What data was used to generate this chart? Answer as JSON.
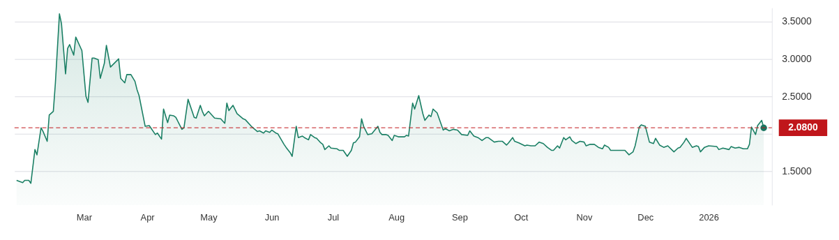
{
  "chart_data": {
    "type": "area",
    "xlim": [
      "2025-01-26",
      "2026-02-01"
    ],
    "xticks": [
      {
        "value": "2025-03-01",
        "label": "Mar"
      },
      {
        "value": "2025-04-01",
        "label": "Apr"
      },
      {
        "value": "2025-05-01",
        "label": "May"
      },
      {
        "value": "2025-06-01",
        "label": "Jun"
      },
      {
        "value": "2025-07-01",
        "label": "Jul"
      },
      {
        "value": "2025-08-01",
        "label": "Aug"
      },
      {
        "value": "2025-09-01",
        "label": "Sep"
      },
      {
        "value": "2025-10-01",
        "label": "Oct"
      },
      {
        "value": "2025-11-01",
        "label": "Nov"
      },
      {
        "value": "2025-12-01",
        "label": "Dec"
      },
      {
        "value": "2026-01-01",
        "label": "2026"
      }
    ],
    "ylim": [
      1.05,
      3.68
    ],
    "yticks": [
      {
        "value": 1.5,
        "label": "1.5000"
      },
      {
        "value": 2.0,
        "label": null
      },
      {
        "value": 2.5,
        "label": "2.5000"
      },
      {
        "value": 3.0,
        "label": "3.0000"
      },
      {
        "value": 3.5,
        "label": "3.5000"
      }
    ],
    "grid": "y",
    "ref_lines": [
      {
        "axis": "y",
        "value": 2.08,
        "label": "2.0800",
        "color": "#c0161b",
        "line_style": "dashed"
      }
    ],
    "series": [
      {
        "color": "#1a7f64",
        "x": [
          "2025-01-27",
          "2025-01-30",
          "2025-01-31",
          "2025-02-02",
          "2025-02-03",
          "2025-02-05",
          "2025-02-06",
          "2025-02-08",
          "2025-02-09",
          "2025-02-11",
          "2025-02-12",
          "2025-02-14",
          "2025-02-15",
          "2025-02-17",
          "2025-02-18",
          "2025-02-20",
          "2025-02-21",
          "2025-02-22",
          "2025-02-24",
          "2025-02-25",
          "2025-02-28",
          "2025-03-02",
          "2025-03-03",
          "2025-03-05",
          "2025-03-06",
          "2025-03-08",
          "2025-03-09",
          "2025-03-11",
          "2025-03-12",
          "2025-03-14",
          "2025-03-18",
          "2025-03-19",
          "2025-03-21",
          "2025-03-22",
          "2025-03-24",
          "2025-03-26",
          "2025-03-27",
          "2025-03-28",
          "2025-03-31",
          "2025-04-02",
          "2025-04-05",
          "2025-04-06",
          "2025-04-08",
          "2025-04-09",
          "2025-04-11",
          "2025-04-12",
          "2025-04-14",
          "2025-04-15",
          "2025-04-18",
          "2025-04-19",
          "2025-04-21",
          "2025-04-23",
          "2025-04-24",
          "2025-04-25",
          "2025-04-27",
          "2025-04-28",
          "2025-04-29",
          "2025-05-01",
          "2025-05-04",
          "2025-05-07",
          "2025-05-09",
          "2025-05-10",
          "2025-05-11",
          "2025-05-13",
          "2025-05-15",
          "2025-05-18",
          "2025-05-19",
          "2025-05-22",
          "2025-05-25",
          "2025-05-26",
          "2025-05-28",
          "2025-05-29",
          "2025-05-31",
          "2025-06-01",
          "2025-06-03",
          "2025-06-04",
          "2025-06-07",
          "2025-06-08",
          "2025-06-10",
          "2025-06-11",
          "2025-06-13",
          "2025-06-14",
          "2025-06-16",
          "2025-06-17",
          "2025-06-19",
          "2025-06-20",
          "2025-06-22",
          "2025-06-23",
          "2025-06-25",
          "2025-06-26",
          "2025-06-27",
          "2025-06-29",
          "2025-06-30",
          "2025-07-03",
          "2025-07-04",
          "2025-07-06",
          "2025-07-08",
          "2025-07-10",
          "2025-07-11",
          "2025-07-12",
          "2025-07-14",
          "2025-07-15",
          "2025-07-16",
          "2025-07-18",
          "2025-07-20",
          "2025-07-23",
          "2025-07-24",
          "2025-07-25",
          "2025-07-27",
          "2025-07-28",
          "2025-07-30",
          "2025-07-31",
          "2025-08-02",
          "2025-08-05",
          "2025-08-06",
          "2025-08-07",
          "2025-08-09",
          "2025-08-10",
          "2025-08-12",
          "2025-08-14",
          "2025-08-15",
          "2025-08-17",
          "2025-08-18",
          "2025-08-19",
          "2025-08-21",
          "2025-08-24",
          "2025-08-25",
          "2025-08-27",
          "2025-08-29",
          "2025-08-31",
          "2025-09-02",
          "2025-09-05",
          "2025-09-06",
          "2025-09-08",
          "2025-09-10",
          "2025-09-12",
          "2025-09-14",
          "2025-09-15",
          "2025-09-18",
          "2025-09-20",
          "2025-09-22",
          "2025-09-24",
          "2025-09-25",
          "2025-09-27",
          "2025-09-28",
          "2025-09-30",
          "2025-10-03",
          "2025-10-04",
          "2025-10-06",
          "2025-10-08",
          "2025-10-10",
          "2025-10-12",
          "2025-10-14",
          "2025-10-16",
          "2025-10-17",
          "2025-10-19",
          "2025-10-20",
          "2025-10-22",
          "2025-10-23",
          "2025-10-25",
          "2025-10-26",
          "2025-10-28",
          "2025-10-30",
          "2025-11-01",
          "2025-11-02",
          "2025-11-04",
          "2025-11-06",
          "2025-11-08",
          "2025-11-10",
          "2025-11-11",
          "2025-11-13",
          "2025-11-14",
          "2025-11-17",
          "2025-11-21",
          "2025-11-23",
          "2025-11-25",
          "2025-11-26",
          "2025-11-28",
          "2025-11-29",
          "2025-12-01",
          "2025-12-03",
          "2025-12-05",
          "2025-12-06",
          "2025-12-08",
          "2025-12-10",
          "2025-12-12",
          "2025-12-15",
          "2025-12-17",
          "2025-12-18",
          "2025-12-20",
          "2025-12-21",
          "2025-12-23",
          "2025-12-24",
          "2025-12-26",
          "2025-12-27",
          "2025-12-28",
          "2025-12-30",
          "2026-01-01",
          "2026-01-05",
          "2026-01-06",
          "2026-01-08",
          "2026-01-11",
          "2026-01-12",
          "2026-01-14",
          "2026-01-16",
          "2026-01-18",
          "2026-01-20",
          "2026-01-21",
          "2026-01-22",
          "2026-01-24",
          "2026-01-25",
          "2026-01-27",
          "2026-01-28"
        ],
        "values": [
          1.38,
          1.35,
          1.38,
          1.38,
          1.34,
          1.79,
          1.72,
          2.08,
          2.03,
          1.9,
          2.25,
          2.3,
          2.67,
          3.6,
          3.47,
          2.8,
          3.14,
          3.19,
          3.05,
          3.29,
          3.11,
          2.5,
          2.42,
          3.01,
          3.01,
          2.99,
          2.74,
          2.94,
          3.18,
          2.89,
          3.0,
          2.74,
          2.68,
          2.79,
          2.79,
          2.7,
          2.59,
          2.51,
          2.1,
          2.11,
          1.99,
          2.01,
          1.93,
          2.33,
          2.15,
          2.25,
          2.24,
          2.22,
          2.06,
          2.08,
          2.46,
          2.3,
          2.22,
          2.21,
          2.38,
          2.3,
          2.24,
          2.3,
          2.21,
          2.2,
          2.14,
          2.41,
          2.31,
          2.38,
          2.27,
          2.2,
          2.19,
          2.1,
          2.03,
          2.04,
          2.01,
          2.04,
          2.02,
          2.05,
          2.01,
          2.0,
          1.86,
          1.82,
          1.75,
          1.7,
          2.1,
          1.95,
          1.97,
          1.95,
          1.92,
          1.99,
          1.95,
          1.94,
          1.88,
          1.86,
          1.79,
          1.84,
          1.81,
          1.8,
          1.78,
          1.78,
          1.7,
          1.78,
          1.88,
          1.89,
          1.96,
          2.2,
          2.1,
          1.99,
          2.0,
          2.1,
          2.02,
          1.99,
          1.99,
          1.98,
          1.91,
          1.98,
          1.96,
          1.96,
          1.98,
          1.97,
          2.41,
          2.33,
          2.51,
          2.27,
          2.18,
          2.25,
          2.23,
          2.33,
          2.28,
          2.05,
          2.07,
          2.04,
          2.06,
          2.05,
          1.99,
          1.98,
          2.04,
          1.97,
          1.95,
          1.91,
          1.95,
          1.95,
          1.89,
          1.9,
          1.9,
          1.85,
          1.88,
          1.95,
          1.9,
          1.88,
          1.84,
          1.85,
          1.84,
          1.84,
          1.89,
          1.87,
          1.82,
          1.78,
          1.78,
          1.84,
          1.81,
          1.95,
          1.92,
          1.96,
          1.91,
          1.87,
          1.9,
          1.89,
          1.84,
          1.86,
          1.86,
          1.82,
          1.8,
          1.85,
          1.82,
          1.78,
          1.78,
          1.78,
          1.72,
          1.76,
          1.84,
          2.09,
          2.12,
          2.1,
          1.89,
          1.87,
          1.94,
          1.85,
          1.82,
          1.84,
          1.76,
          1.81,
          1.82,
          1.89,
          1.94,
          1.86,
          1.82,
          1.84,
          1.83,
          1.76,
          1.82,
          1.84,
          1.83,
          1.79,
          1.81,
          1.79,
          1.83,
          1.81,
          1.82,
          1.8,
          1.8,
          1.86,
          2.09,
          1.99,
          2.11,
          2.18,
          2.08
        ]
      },
      {
        "type": "scatter",
        "color": "#1a7561",
        "x": [
          "2026-01-28"
        ],
        "values": [
          2.08
        ]
      }
    ]
  }
}
